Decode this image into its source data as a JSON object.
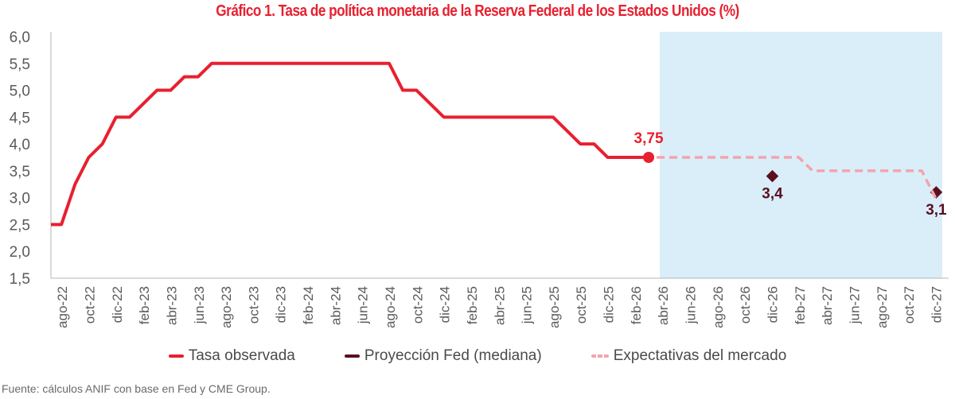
{
  "chart_data": {
    "type": "line",
    "title": "Gráfico 1. Tasa de política monetaria de la Reserva Federal de los Estados Unidos (%)",
    "xlabel": "",
    "ylabel": "",
    "ylim": [
      1.5,
      6.0
    ],
    "yticks": [
      "6,0",
      "5,5",
      "5,0",
      "4,5",
      "4,0",
      "3,5",
      "3,0",
      "2,5",
      "2,0",
      "1,5"
    ],
    "ytick_values": [
      6.0,
      5.5,
      5.0,
      4.5,
      4.0,
      3.5,
      3.0,
      2.5,
      2.0,
      1.5
    ],
    "months": [
      "jul-22",
      "ago-22",
      "sep-22",
      "oct-22",
      "nov-22",
      "dic-22",
      "ene-23",
      "feb-23",
      "mar-23",
      "abr-23",
      "may-23",
      "jun-23",
      "jul-23",
      "ago-23",
      "sep-23",
      "oct-23",
      "nov-23",
      "dic-23",
      "ene-24",
      "feb-24",
      "mar-24",
      "abr-24",
      "may-24",
      "jun-24",
      "jul-24",
      "ago-24",
      "sep-24",
      "oct-24",
      "nov-24",
      "dic-24",
      "ene-25",
      "feb-25",
      "mar-25",
      "abr-25",
      "may-25",
      "jun-25",
      "jul-25",
      "ago-25",
      "sep-25",
      "oct-25",
      "nov-25",
      "dic-25",
      "ene-26",
      "feb-26",
      "mar-26",
      "abr-26",
      "may-26",
      "jun-26",
      "jul-26",
      "ago-26",
      "sep-26",
      "oct-26",
      "nov-26",
      "dic-26",
      "ene-27",
      "feb-27",
      "mar-27",
      "abr-27",
      "may-27",
      "jun-27",
      "jul-27",
      "ago-27",
      "sep-27",
      "oct-27",
      "nov-27",
      "dic-27"
    ],
    "xtick_labels": [
      "ago-22",
      "oct-22",
      "dic-22",
      "feb-23",
      "abr-23",
      "jun-23",
      "ago-23",
      "oct-23",
      "dic-23",
      "feb-24",
      "abr-24",
      "jun-24",
      "ago-24",
      "oct-24",
      "dic-24",
      "feb-25",
      "abr-25",
      "jun-25",
      "ago-25",
      "oct-25",
      "dic-25",
      "feb-26",
      "abr-26",
      "jun-26",
      "ago-26",
      "oct-26",
      "dic-26",
      "feb-27",
      "abr-27",
      "jun-27",
      "ago-27",
      "oct-27",
      "dic-27"
    ],
    "shaded_region": {
      "from": "mar-26",
      "to": "dic-27",
      "color": "#d9eef9"
    },
    "series": [
      {
        "name": "Tasa observada",
        "color": "#e8202f",
        "style": "solid",
        "x": [
          "jul-22",
          "ago-22",
          "sep-22",
          "oct-22",
          "nov-22",
          "dic-22",
          "ene-23",
          "feb-23",
          "mar-23",
          "abr-23",
          "may-23",
          "jun-23",
          "jul-23",
          "ago-23",
          "sep-23",
          "oct-23",
          "nov-23",
          "dic-23",
          "ene-24",
          "feb-24",
          "mar-24",
          "abr-24",
          "may-24",
          "jun-24",
          "jul-24",
          "ago-24",
          "sep-24",
          "oct-24",
          "nov-24",
          "dic-24",
          "ene-25",
          "feb-25",
          "mar-25",
          "abr-25",
          "may-25",
          "jun-25",
          "jul-25",
          "ago-25",
          "sep-25",
          "oct-25",
          "nov-25",
          "dic-25",
          "ene-26",
          "feb-26",
          "mar-26"
        ],
        "values": [
          2.5,
          2.5,
          3.25,
          3.75,
          4.0,
          4.5,
          4.5,
          4.75,
          5.0,
          5.0,
          5.25,
          5.25,
          5.5,
          5.5,
          5.5,
          5.5,
          5.5,
          5.5,
          5.5,
          5.5,
          5.5,
          5.5,
          5.5,
          5.5,
          5.5,
          5.5,
          5.0,
          5.0,
          4.75,
          4.5,
          4.5,
          4.5,
          4.5,
          4.5,
          4.5,
          4.5,
          4.5,
          4.5,
          4.25,
          4.0,
          4.0,
          3.75,
          3.75,
          3.75,
          3.75
        ]
      },
      {
        "name": "Proyección Fed (mediana)",
        "color": "#5c0f1f",
        "style": "marker",
        "x": [
          "dic-26",
          "dic-27"
        ],
        "values": [
          3.4,
          3.1
        ]
      },
      {
        "name": "Expectativas del mercado",
        "color": "#f4a3ae",
        "style": "dashed",
        "x": [
          "mar-26",
          "feb-27",
          "mar-27",
          "nov-27",
          "dic-27"
        ],
        "values": [
          3.75,
          3.75,
          3.5,
          3.5,
          3.0
        ]
      }
    ],
    "annotations": [
      {
        "text": "3,75",
        "x": "mar-26",
        "value": 3.75,
        "color": "#e8202f"
      },
      {
        "text": "3,4",
        "x": "dic-26",
        "value": 3.4,
        "color": "#5c0f1f"
      },
      {
        "text": "3,1",
        "x": "dic-27",
        "value": 3.1,
        "color": "#5c0f1f"
      }
    ],
    "legend": {
      "placement": "bottom",
      "items": [
        {
          "label": "Tasa observada",
          "color": "#e8202f",
          "style": "solid"
        },
        {
          "label": "Proyección Fed (mediana)",
          "color": "#5c0f1f",
          "style": "solid"
        },
        {
          "label": "Expectativas del mercado",
          "color": "#f4a3ae",
          "style": "dashed"
        }
      ]
    },
    "grid": false
  },
  "source": "Fuente: cálculos ANIF con base en Fed y CME Group."
}
